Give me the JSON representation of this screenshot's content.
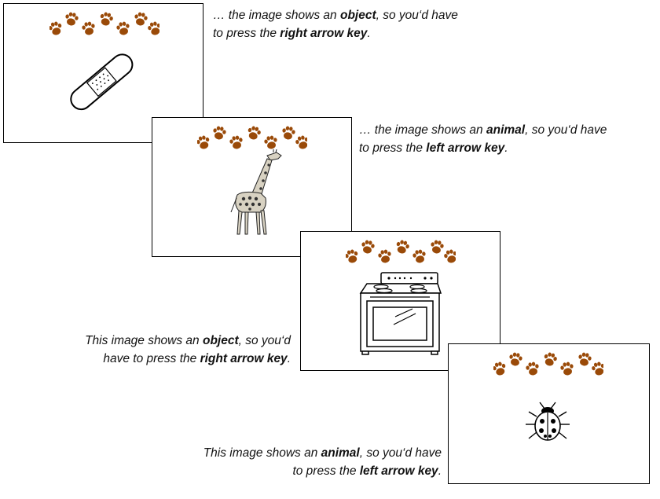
{
  "colors": {
    "paw": "#9a4a08",
    "border": "#000000"
  },
  "cards": [
    {
      "picture_icon": "bandage-icon"
    },
    {
      "picture_icon": "giraffe-icon"
    },
    {
      "picture_icon": "stove-icon"
    },
    {
      "picture_icon": "ladybug-icon"
    }
  ],
  "captions": [
    {
      "line1_pre": "… the image shows an ",
      "line1_bold": "object",
      "line1_post": ", so you‘d have",
      "line2_pre": "to press the ",
      "line2_bold": "right arrow key",
      "line2_post": "."
    },
    {
      "line1_pre": "… the  image shows an ",
      "line1_bold": "animal",
      "line1_post": ", so you‘d have",
      "line2_pre": "to press the ",
      "line2_bold": "left arrow key",
      "line2_post": "."
    },
    {
      "line1_pre": "This  image shows an ",
      "line1_bold": "object",
      "line1_post": ", so you‘d",
      "line2_pre": "have to press the ",
      "line2_bold": "right arrow key",
      "line2_post": "."
    },
    {
      "line1_pre": "This  image shows an ",
      "line1_bold": "animal",
      "line1_post": ", so you‘d have",
      "line2_pre": "to press the ",
      "line2_bold": "left arrow key",
      "line2_post": "."
    }
  ]
}
